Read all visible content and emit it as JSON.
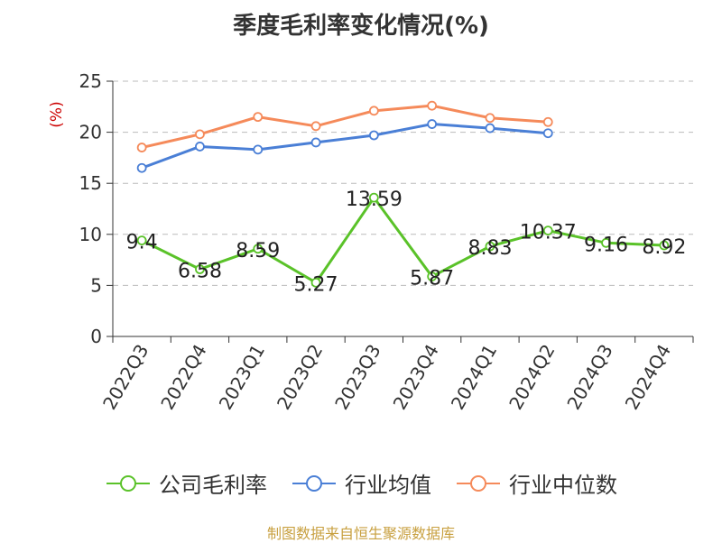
{
  "chart_data": {
    "type": "line",
    "title": "季度毛利率变化情况(%)",
    "ylabel": "(%)",
    "xlabel": "",
    "ylim": [
      0,
      25
    ],
    "yticks": [
      0,
      5,
      10,
      15,
      20,
      25
    ],
    "grid": true,
    "legend_position": "bottom",
    "categories": [
      "2022Q3",
      "2022Q4",
      "2023Q1",
      "2023Q2",
      "2023Q3",
      "2023Q4",
      "2024Q1",
      "2024Q2",
      "2024Q3",
      "2024Q4"
    ],
    "series": [
      {
        "name": "公司毛利率",
        "color": "#5ac229",
        "values": [
          9.4,
          6.58,
          8.59,
          5.27,
          13.59,
          5.87,
          8.83,
          10.37,
          9.16,
          8.92
        ],
        "labels": [
          "9.4",
          "6.58",
          "8.59",
          "5.27",
          "13.59",
          "5.87",
          "8.83",
          "10.37",
          "9.16",
          "8.92"
        ]
      },
      {
        "name": "行业均值",
        "color": "#4a7fd6",
        "values": [
          16.5,
          18.6,
          18.3,
          19.0,
          19.7,
          20.8,
          20.4,
          19.9,
          null,
          null
        ]
      },
      {
        "name": "行业中位数",
        "color": "#f58a5a",
        "values": [
          18.5,
          19.8,
          21.5,
          20.6,
          22.1,
          22.6,
          21.4,
          21.0,
          null,
          null
        ]
      }
    ]
  },
  "source": "制图数据来自恒生聚源数据库"
}
